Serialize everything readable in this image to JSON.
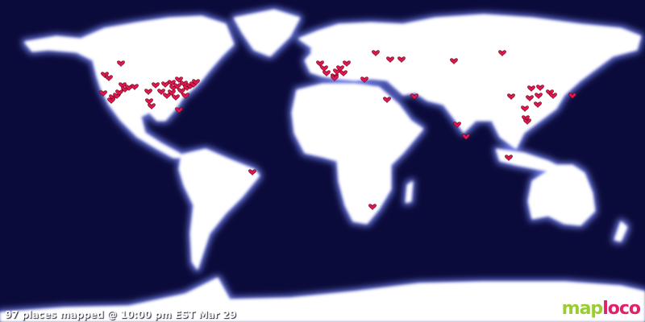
{
  "status_text": "97 places mapped @ 10:00 pm EST Mar 29",
  "logo": {
    "part1": "map",
    "part2": "loco"
  },
  "colors": {
    "ocean": "#0b0b3b",
    "land": "#ffffff",
    "glow": "#6f7fe8",
    "pin": "#e0185a"
  },
  "marker_icon": "heart-icon"
}
